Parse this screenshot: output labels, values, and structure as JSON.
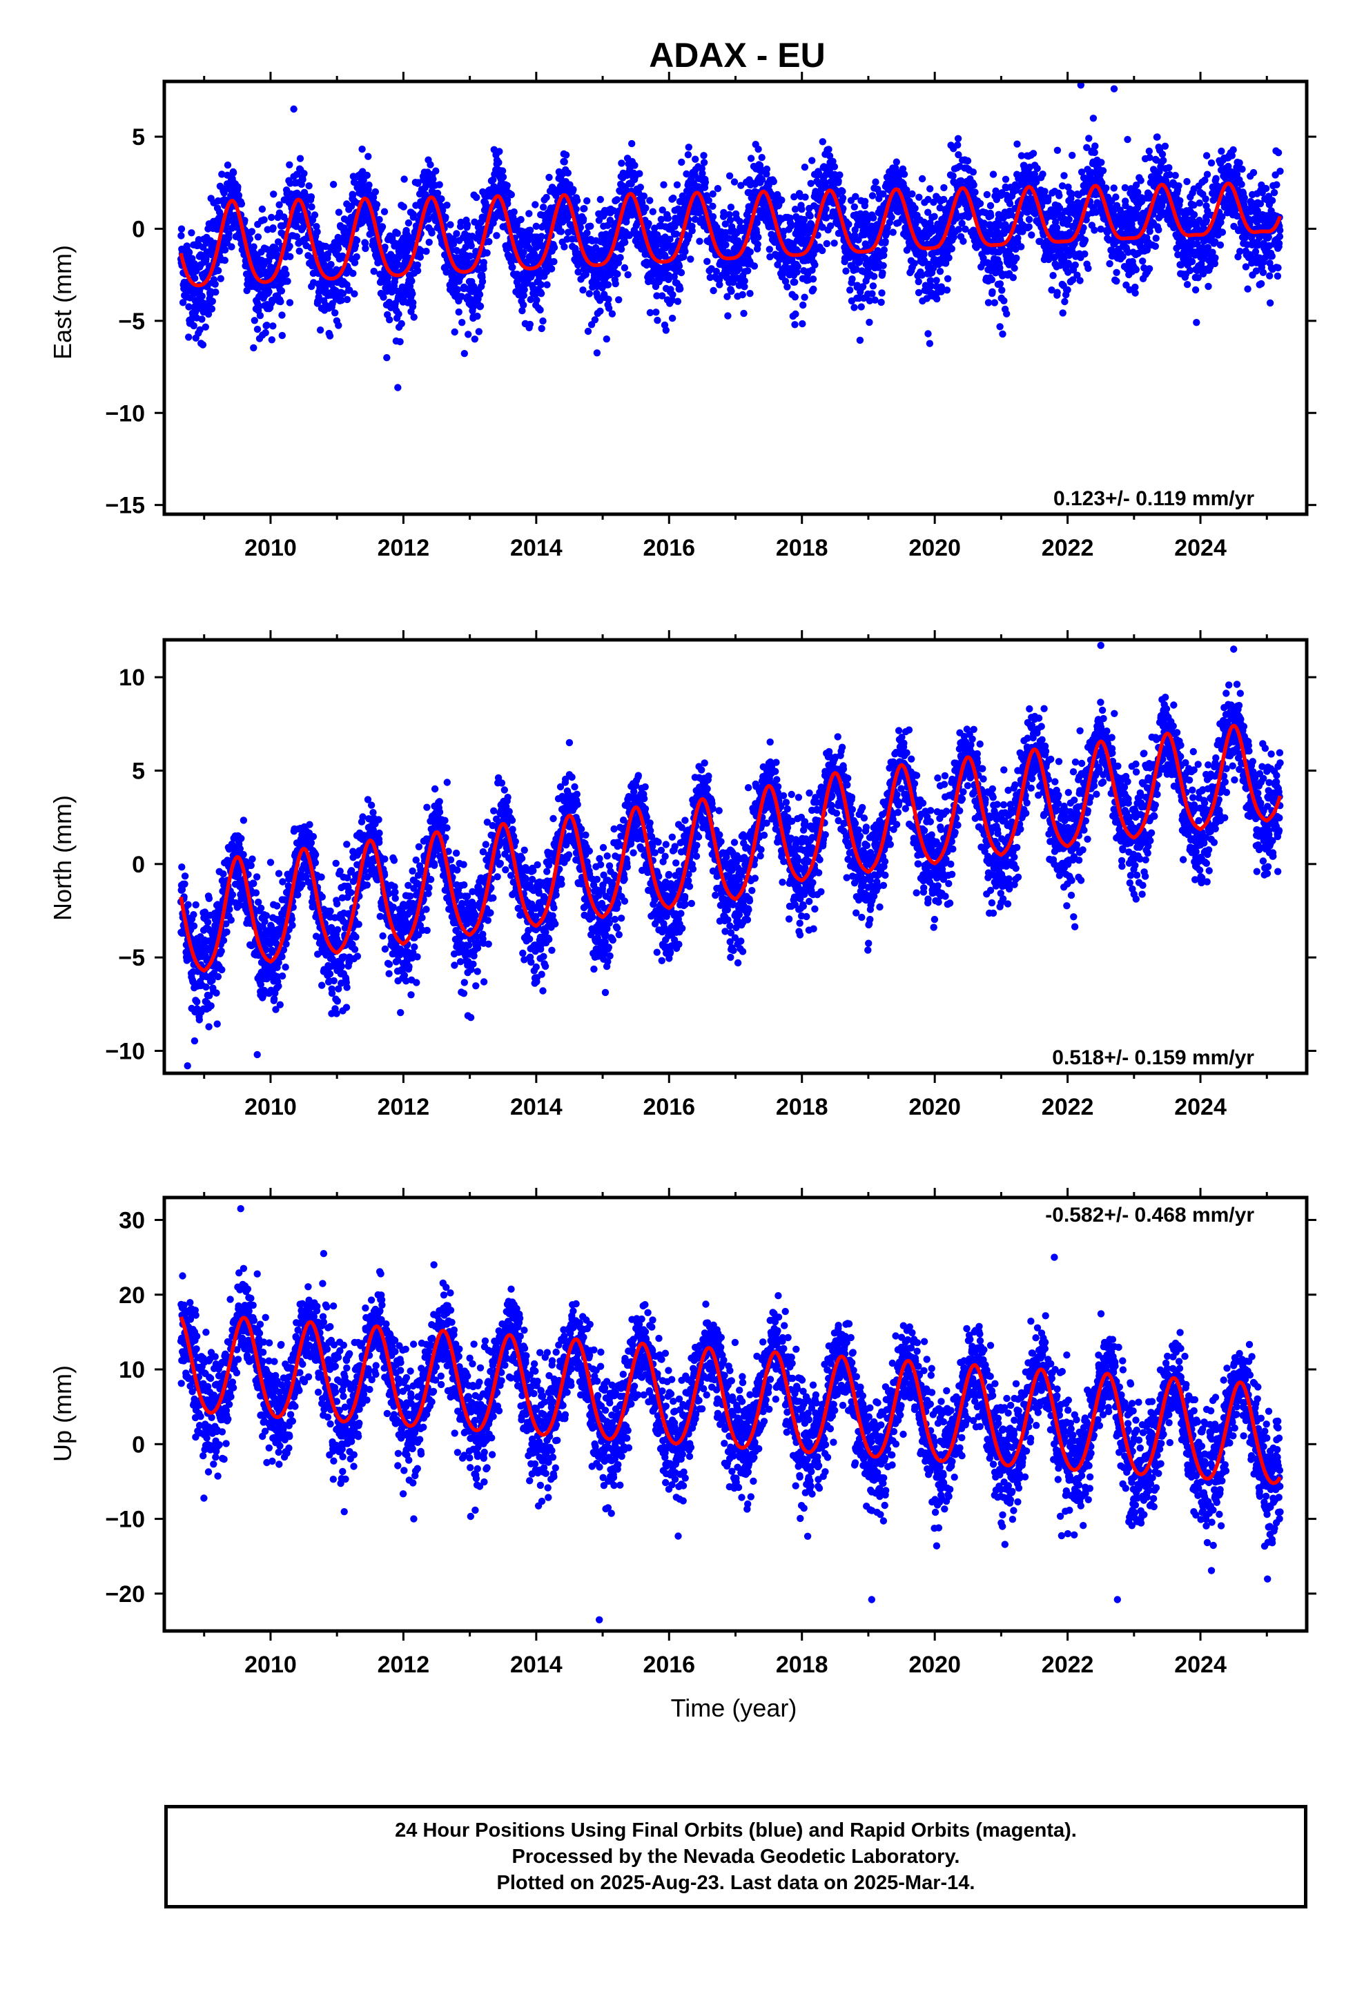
{
  "chart_data": {
    "type": "scatter",
    "title": "ADAX - EU",
    "xlabel": "Time (year)",
    "x_ticks": [
      2010,
      2012,
      2014,
      2016,
      2018,
      2020,
      2022,
      2024
    ],
    "xlim": [
      2008.4,
      2025.6
    ],
    "data_start": 2008.65,
    "data_end": 2025.2,
    "colors": {
      "final_orbits": "#0000ff",
      "model": "#ff0000"
    },
    "panels": [
      {
        "name": "east",
        "ylabel": "East (mm)",
        "ylim": [
          -15.5,
          8
        ],
        "y_ticks": [
          5,
          0,
          -5,
          -10,
          -15
        ],
        "rate_label": "0.123+/- 0.119 mm/yr",
        "rate_position": "bottom-right",
        "model": {
          "offset": -0.2,
          "trend_mm_per_yr": 0.123,
          "annual_amplitude": [
            2.3,
            1.3
          ],
          "annual_peak": 0.42,
          "semiannual_amplitude": 0.4,
          "noise_sd": 1.3,
          "outliers": [
            [
              2011.75,
              -7.0
            ],
            [
              2022.2,
              7.8
            ],
            [
              2022.7,
              7.6
            ],
            [
              2010.35,
              6.5
            ],
            [
              2019.9,
              -5.7
            ],
            [
              2010.75,
              -5.5
            ]
          ]
        }
      },
      {
        "name": "north",
        "ylabel": "North (mm)",
        "ylim": [
          -11.2,
          12
        ],
        "y_ticks": [
          10,
          5,
          0,
          -5,
          -10
        ],
        "rate_label": "0.518+/- 0.159 mm/yr",
        "rate_position": "bottom-right",
        "model": {
          "trend_segments": [
            [
              2008.65,
              -6.0
            ],
            [
              2017.0,
              -2.0
            ],
            [
              2018.0,
              -1.0
            ],
            [
              2025.2,
              2.3
            ]
          ],
          "annual_amplitude": [
            6.0,
            5.4
          ],
          "annual_peak": 0.5,
          "pulse_width": 0.18,
          "noise_sd": 1.3,
          "outliers": [
            [
              2008.75,
              -10.8
            ],
            [
              2014.5,
              6.5
            ],
            [
              2022.5,
              11.7
            ],
            [
              2024.5,
              11.5
            ],
            [
              2009.8,
              -10.2
            ]
          ]
        }
      },
      {
        "name": "up",
        "ylabel": "Up (mm)",
        "ylim": [
          -25,
          33
        ],
        "y_ticks": [
          30,
          20,
          10,
          0,
          -10,
          -20
        ],
        "rate_label": "-0.582+/- 0.468 mm/yr",
        "rate_position": "top-right",
        "model": {
          "offset": 5.5,
          "trend_mm_per_yr": -0.582,
          "annual_amplitude": [
            6.5,
            6.6
          ],
          "annual_peak": 0.6,
          "semiannual_amplitude": 0.6,
          "noise_sd": 3.5,
          "outliers": [
            [
              2009.55,
              31.5
            ],
            [
              2010.8,
              25.5
            ],
            [
              2021.8,
              25.0
            ],
            [
              2014.95,
              -23.5
            ],
            [
              2019.05,
              -20.8
            ],
            [
              2022.75,
              -20.8
            ]
          ]
        }
      }
    ]
  },
  "footer": {
    "line1": "24 Hour Positions Using Final Orbits (blue) and Rapid Orbits (magenta).",
    "line2": "Processed by the Nevada Geodetic Laboratory.",
    "line3": "Plotted on 2025-Aug-23. Last data on 2025-Mar-14."
  }
}
